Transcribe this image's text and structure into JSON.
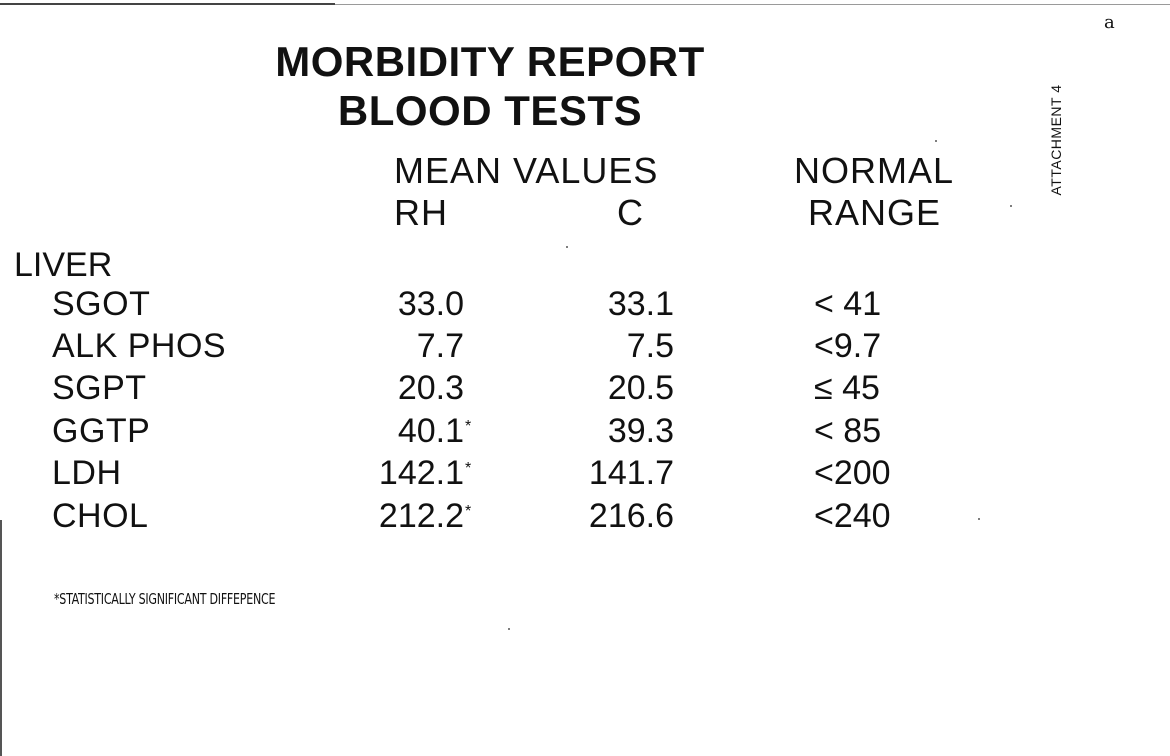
{
  "document": {
    "title_line1": "MORBIDITY REPORT",
    "title_line2": "BLOOD TESTS",
    "corner_mark": "a",
    "attachment_label": "ATTACHMENT 4"
  },
  "columns": {
    "mean_values": "MEAN VALUES",
    "rh": "RH",
    "c": "C",
    "normal": "NORMAL",
    "range": "RANGE"
  },
  "section": {
    "label": "LIVER"
  },
  "rows": [
    {
      "name": "SGOT",
      "rh": "33.0",
      "rh_mark": "",
      "c": "33.1",
      "range": "< 41"
    },
    {
      "name": "ALK PHOS",
      "rh": "7.7",
      "rh_mark": "",
      "c": "7.5",
      "range": "<9.7"
    },
    {
      "name": "SGPT",
      "rh": "20.3",
      "rh_mark": "",
      "c": "20.5",
      "range": "≤ 45"
    },
    {
      "name": "GGTP",
      "rh": "40.1",
      "rh_mark": "*",
      "c": "39.3",
      "range": "< 85"
    },
    {
      "name": "LDH",
      "rh": "142.1",
      "rh_mark": "*",
      "c": "141.7",
      "range": "<200"
    },
    {
      "name": "CHOL",
      "rh": "212.2",
      "rh_mark": "*",
      "c": "216.6",
      "range": "<240"
    }
  ],
  "footnote": "*STATISTICALLY SIGNIFICANT DIFFEPENCE"
}
